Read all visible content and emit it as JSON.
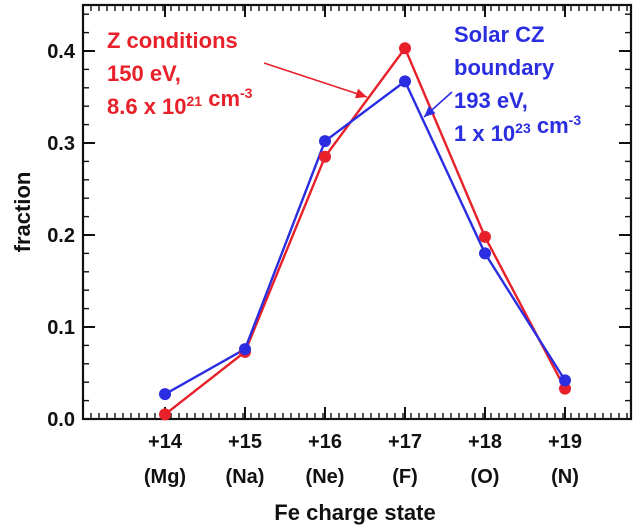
{
  "chart_data": {
    "type": "line",
    "categories": [
      "+14",
      "+15",
      "+16",
      "+17",
      "+18",
      "+19"
    ],
    "category_sublabels": [
      "(Mg)",
      "(Na)",
      "(Ne)",
      "(F)",
      "(O)",
      "(N)"
    ],
    "xlabel": "Fe charge state",
    "ylabel": "fraction",
    "ylim": [
      0,
      0.45
    ],
    "yticks": [
      0.0,
      0.1,
      0.2,
      0.3,
      0.4
    ],
    "ytick_labels": [
      "0.0",
      "0.1",
      "0.2",
      "0.3",
      "0.4"
    ],
    "grid": false,
    "series": [
      {
        "color": "#e8202a",
        "values": [
          0.005,
          0.073,
          0.285,
          0.403,
          0.198,
          0.033
        ]
      },
      {
        "color": "#2a2ee0",
        "values": [
          0.027,
          0.076,
          0.302,
          0.367,
          0.18,
          0.042
        ]
      }
    ],
    "annotations": [
      {
        "color": "#e8202a",
        "lines": [
          {
            "parts": [
              {
                "text": "Z conditions"
              }
            ]
          },
          {
            "parts": [
              {
                "text": "150 eV,"
              }
            ]
          },
          {
            "parts": [
              {
                "text": "8.6 x 10"
              },
              {
                "text": "21",
                "sup": true
              },
              {
                "text": " cm"
              },
              {
                "text": "-3",
                "sup": true
              }
            ]
          }
        ]
      },
      {
        "color": "#2a2ee0",
        "lines": [
          {
            "parts": [
              {
                "text": "Solar CZ"
              }
            ]
          },
          {
            "parts": [
              {
                "text": "boundary"
              }
            ]
          },
          {
            "parts": [
              {
                "text": "193 eV,"
              }
            ]
          },
          {
            "parts": [
              {
                "text": "1 x 10"
              },
              {
                "text": "23",
                "sup": true
              },
              {
                "text": " cm"
              },
              {
                "text": "-3",
                "sup": true
              }
            ]
          }
        ]
      }
    ]
  }
}
